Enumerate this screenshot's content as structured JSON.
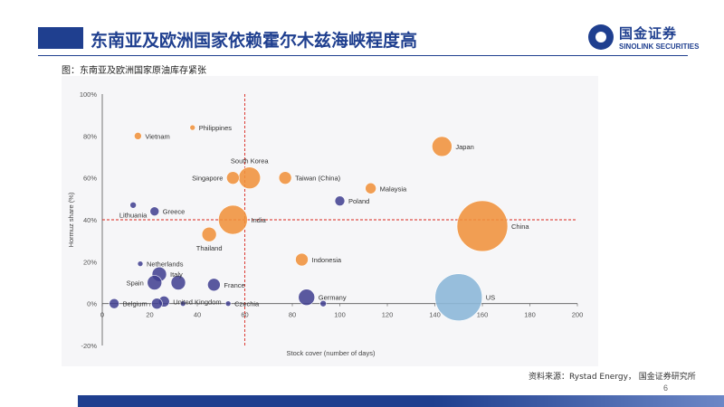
{
  "header": {
    "title": "东南亚及欧洲国家依赖霍尔木兹海峡程度高",
    "logo_cn": "国金证券",
    "logo_en": "SINOLINK SECURITIES"
  },
  "figure": {
    "caption": "图：东南亚及欧洲国家原油库存紧张"
  },
  "footer": {
    "source": "资料来源：Rystad Energy， 国金证券研究所",
    "page_number": "6"
  },
  "colors": {
    "brand": "#1f3f8f",
    "asia": "#f0923b",
    "europe": "#3e3d8f",
    "us": "#8db8d8",
    "reference_line": "#d9261c"
  },
  "chart_data": {
    "type": "scatter",
    "title": "",
    "xlabel": "Stock cover (number of days)",
    "ylabel": "Hormuz share (%)",
    "xlim": [
      0,
      200
    ],
    "ylim": [
      -20,
      100
    ],
    "x_ticks": [
      "0",
      "20",
      "40",
      "60",
      "80",
      "100",
      "120",
      "140",
      "160",
      "180",
      "200"
    ],
    "y_ticks": [
      "-20%",
      "0%",
      "20%",
      "40%",
      "60%",
      "80%",
      "100%"
    ],
    "reference_lines": {
      "x": 60,
      "y": 40
    },
    "grid": false,
    "legend": "none",
    "points": [
      {
        "label": "Vietnam",
        "x": 15,
        "y": 80,
        "size": 4,
        "group": "asia",
        "label_side": "right"
      },
      {
        "label": "Philippines",
        "x": 38,
        "y": 84,
        "size": 3,
        "group": "asia",
        "label_side": "right"
      },
      {
        "label": "Japan",
        "x": 143,
        "y": 75,
        "size": 11,
        "group": "asia",
        "label_side": "right"
      },
      {
        "label": "South Korea",
        "x": 62,
        "y": 60,
        "size": 12,
        "group": "asia",
        "label_side": "above"
      },
      {
        "label": "Singapore",
        "x": 55,
        "y": 60,
        "size": 7,
        "group": "asia",
        "label_side": "left"
      },
      {
        "label": "Taiwan (China)",
        "x": 77,
        "y": 60,
        "size": 7,
        "group": "asia",
        "label_side": "right"
      },
      {
        "label": "Malaysia",
        "x": 113,
        "y": 55,
        "size": 6,
        "group": "asia",
        "label_side": "right"
      },
      {
        "label": "Poland",
        "x": 100,
        "y": 49,
        "size": 5.5,
        "group": "europe",
        "label_side": "right"
      },
      {
        "label": "Lithuania",
        "x": 13,
        "y": 47,
        "size": 3.5,
        "group": "europe",
        "label_side": "below"
      },
      {
        "label": "Greece",
        "x": 22,
        "y": 44,
        "size": 5,
        "group": "europe",
        "label_side": "right"
      },
      {
        "label": "India",
        "x": 55,
        "y": 40,
        "size": 16,
        "group": "asia",
        "label_side": "right"
      },
      {
        "label": "China",
        "x": 160,
        "y": 37,
        "size": 28,
        "group": "asia",
        "label_side": "right"
      },
      {
        "label": "Thailand",
        "x": 45,
        "y": 33,
        "size": 8,
        "group": "asia",
        "label_side": "below"
      },
      {
        "label": "Indonesia",
        "x": 84,
        "y": 21,
        "size": 7,
        "group": "asia",
        "label_side": "right"
      },
      {
        "label": "Netherlands",
        "x": 16,
        "y": 19,
        "size": 3,
        "group": "europe",
        "label_side": "right"
      },
      {
        "label": "Italy",
        "x": 24,
        "y": 14,
        "size": 8,
        "group": "europe",
        "label_side": "right"
      },
      {
        "label": "Spain",
        "x": 22,
        "y": 10,
        "size": 8,
        "group": "europe",
        "label_side": "left"
      },
      {
        "label": "",
        "x": 32,
        "y": 10,
        "size": 8,
        "group": "europe",
        "label_side": "none"
      },
      {
        "label": "France",
        "x": 47,
        "y": 9,
        "size": 7,
        "group": "europe",
        "label_side": "right"
      },
      {
        "label": "US",
        "x": 150,
        "y": 3,
        "size": 26,
        "group": "us",
        "label_side": "right"
      },
      {
        "label": "Germany",
        "x": 86,
        "y": 3,
        "size": 9,
        "group": "europe",
        "label_side": "right"
      },
      {
        "label": "United Kingdom",
        "x": 26,
        "y": 1,
        "size": 6,
        "group": "europe",
        "label_side": "right"
      },
      {
        "label": "Belgium",
        "x": 5,
        "y": 0,
        "size": 5.5,
        "group": "europe",
        "label_side": "right"
      },
      {
        "label": "",
        "x": 23,
        "y": 0,
        "size": 6,
        "group": "europe",
        "label_side": "none"
      },
      {
        "label": "",
        "x": 34,
        "y": 0,
        "size": 3,
        "group": "europe",
        "label_side": "none"
      },
      {
        "label": "Czechia",
        "x": 53,
        "y": 0,
        "size": 3,
        "group": "europe",
        "label_side": "right"
      },
      {
        "label": "",
        "x": 93,
        "y": 0,
        "size": 3.5,
        "group": "europe",
        "label_side": "none"
      }
    ]
  }
}
